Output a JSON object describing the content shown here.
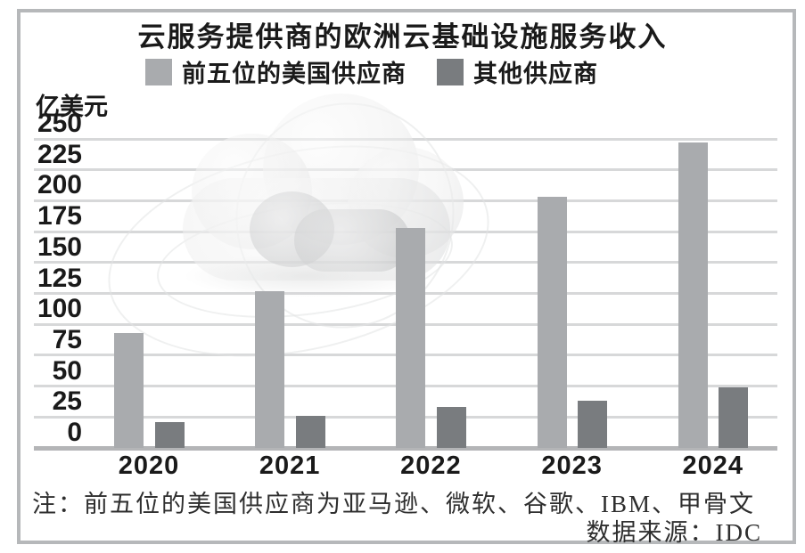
{
  "chart_data": {
    "type": "bar",
    "title": "云服务提供商的欧洲云基础设施服务收入",
    "unit_label": "亿美元",
    "categories": [
      "2020",
      "2021",
      "2022",
      "2023",
      "2024"
    ],
    "series": [
      {
        "name": "前五位的美国供应商",
        "color": "#a9abae",
        "values": [
          93,
          127,
          178,
          203,
          247
        ]
      },
      {
        "name": "其他供应商",
        "color": "#797c7f",
        "values": [
          21,
          26,
          33,
          38,
          49
        ]
      }
    ],
    "xlabel": "",
    "ylabel": "亿美元",
    "ylim": [
      0,
      250
    ],
    "yticks": [
      0,
      25,
      50,
      75,
      100,
      125,
      150,
      175,
      200,
      225,
      250
    ],
    "grid": true,
    "legend_position": "top"
  },
  "notes": {
    "note": "注：前五位的美国供应商为亚马逊、微软、谷歌、IBM、甲骨文",
    "source": "数据来源：IDC"
  },
  "decor": {
    "watermark": "cloud-3d-graphic"
  },
  "colors": {
    "bar_light": "#a9abae",
    "bar_dark": "#797c7f",
    "gridline": "#d7d8d9",
    "axis_line": "#b4b5b7",
    "frame_border": "#b6b8ba",
    "text": "#1a1a1a",
    "note_text": "#2e2e2e"
  }
}
